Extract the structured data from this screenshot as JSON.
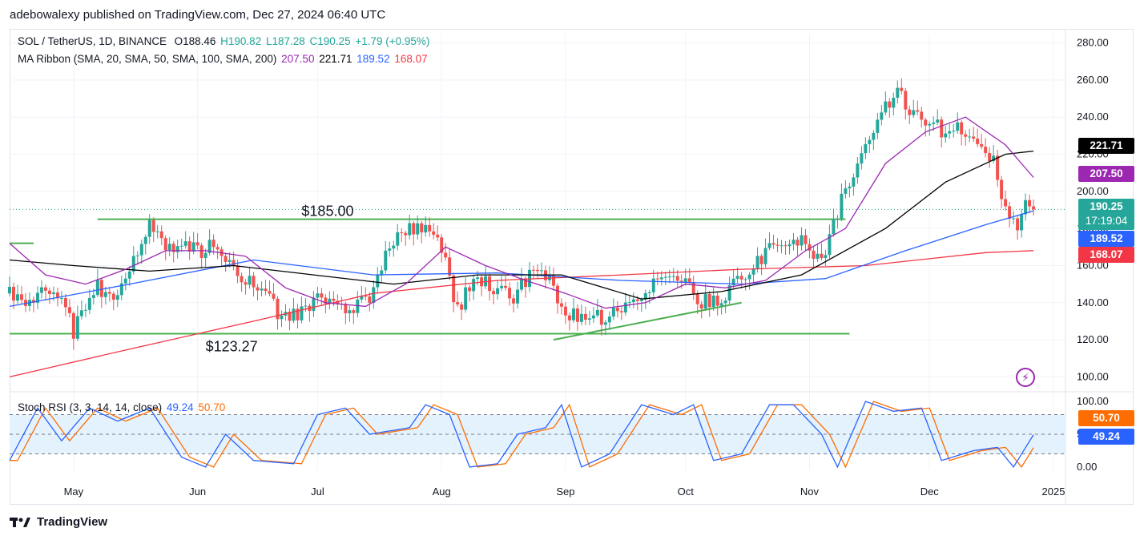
{
  "header": {
    "text": "adebowalexy published on TradingView.com, Dec 27, 2024 06:40 UTC"
  },
  "legend": {
    "symbol": "SOL / TetherUS, 1D, BINANCE",
    "o": "O188.46",
    "h": "H190.82",
    "l": "L187.28",
    "c": "C190.25",
    "change": "+1.79 (+0.95%)",
    "ma_label": "MA Ribbon (SMA, 20, SMA, 50, SMA, 100, SMA, 200)",
    "ma20": "207.50",
    "ma50": "221.71",
    "ma100": "189.52",
    "ma200": "168.07",
    "stoch_label": "Stoch RSI (3, 3, 14, 14, close)",
    "stoch_k": "49.24",
    "stoch_d": "50.70"
  },
  "tags": {
    "ma50": "221.71",
    "ma20": "207.50",
    "price": "190.25",
    "countdown": "17:19:04",
    "ma100": "189.52",
    "ma200": "168.07",
    "stoch_d": "50.70",
    "stoch_k": "49.24"
  },
  "annotations": {
    "resistance": "$185.00",
    "support": "$123.27"
  },
  "footer": {
    "brand": "TradingView"
  },
  "colors": {
    "up": "#26a69a",
    "down": "#ef5350",
    "ma20": "#9c27b0",
    "ma50": "#000000",
    "ma100": "#2962ff",
    "ma200": "#f23645",
    "levels": "#4caf50",
    "stoch_k": "#2962ff",
    "stoch_d": "#ff6d00",
    "stoch_band": "#e3f2fd"
  },
  "chart_data": {
    "type": "candlestick",
    "x_tick_labels": [
      "May",
      "Jun",
      "Jul",
      "Aug",
      "Sep",
      "Oct",
      "Nov",
      "Dec",
      "2025"
    ],
    "y_ticks": [
      "280.00",
      "260.00",
      "240.00",
      "220.00",
      "200.00",
      "180.00",
      "160.00",
      "140.00",
      "120.00",
      "100.00"
    ],
    "y_range": [
      95,
      285
    ],
    "stoch_ticks": [
      "100.00",
      "50.00",
      "0.00"
    ],
    "stoch_range": [
      -5,
      105
    ],
    "stoch_bands": [
      20,
      80
    ],
    "date_range": [
      "2024-04-15",
      "2025-01-04"
    ],
    "month_starts": [
      "2024-05-01",
      "2024-06-01",
      "2024-07-01",
      "2024-08-01",
      "2024-09-01",
      "2024-10-01",
      "2024-11-01",
      "2024-12-01",
      "2025-01-01"
    ],
    "price_knots": [
      [
        "2024-04-15",
        145
      ],
      [
        "2024-04-19",
        138
      ],
      [
        "2024-04-24",
        150
      ],
      [
        "2024-04-29",
        140
      ],
      [
        "2024-05-01",
        125
      ],
      [
        "2024-05-07",
        148
      ],
      [
        "2024-05-12",
        145
      ],
      [
        "2024-05-16",
        162
      ],
      [
        "2024-05-20",
        185
      ],
      [
        "2024-05-24",
        172
      ],
      [
        "2024-05-28",
        170
      ],
      [
        "2024-06-02",
        168
      ],
      [
        "2024-06-06",
        172
      ],
      [
        "2024-06-11",
        155
      ],
      [
        "2024-06-16",
        150
      ],
      [
        "2024-06-21",
        135
      ],
      [
        "2024-06-26",
        132
      ],
      [
        "2024-07-01",
        145
      ],
      [
        "2024-07-05",
        140
      ],
      [
        "2024-07-09",
        138
      ],
      [
        "2024-07-14",
        142
      ],
      [
        "2024-07-18",
        165
      ],
      [
        "2024-07-22",
        180
      ],
      [
        "2024-07-27",
        182
      ],
      [
        "2024-08-01",
        170
      ],
      [
        "2024-08-05",
        135
      ],
      [
        "2024-08-09",
        155
      ],
      [
        "2024-08-14",
        148
      ],
      [
        "2024-08-19",
        142
      ],
      [
        "2024-08-24",
        160
      ],
      [
        "2024-08-28",
        152
      ],
      [
        "2024-09-01",
        135
      ],
      [
        "2024-09-06",
        130
      ],
      [
        "2024-09-11",
        133
      ],
      [
        "2024-09-16",
        137
      ],
      [
        "2024-09-21",
        148
      ],
      [
        "2024-09-26",
        155
      ],
      [
        "2024-10-01",
        150
      ],
      [
        "2024-10-05",
        140
      ],
      [
        "2024-10-10",
        142
      ],
      [
        "2024-10-15",
        155
      ],
      [
        "2024-10-20",
        165
      ],
      [
        "2024-10-25",
        172
      ],
      [
        "2024-10-30",
        175
      ],
      [
        "2024-11-04",
        160
      ],
      [
        "2024-11-09",
        195
      ],
      [
        "2024-11-13",
        215
      ],
      [
        "2024-11-17",
        235
      ],
      [
        "2024-11-20",
        245
      ],
      [
        "2024-11-23",
        255
      ],
      [
        "2024-11-27",
        240
      ],
      [
        "2024-12-01",
        240
      ],
      [
        "2024-12-05",
        230
      ],
      [
        "2024-12-09",
        235
      ],
      [
        "2024-12-13",
        222
      ],
      [
        "2024-12-17",
        215
      ],
      [
        "2024-12-20",
        190
      ],
      [
        "2024-12-23",
        182
      ],
      [
        "2024-12-25",
        195
      ],
      [
        "2024-12-27",
        190.25
      ]
    ],
    "ma_knots": {
      "sma20": [
        [
          "2024-04-15",
          172
        ],
        [
          "2024-04-24",
          155
        ],
        [
          "2024-05-04",
          150
        ],
        [
          "2024-05-14",
          158
        ],
        [
          "2024-05-24",
          168
        ],
        [
          "2024-06-03",
          168
        ],
        [
          "2024-06-13",
          165
        ],
        [
          "2024-06-23",
          148
        ],
        [
          "2024-07-03",
          140
        ],
        [
          "2024-07-13",
          138
        ],
        [
          "2024-07-23",
          150
        ],
        [
          "2024-08-02",
          170
        ],
        [
          "2024-08-12",
          160
        ],
        [
          "2024-08-22",
          152
        ],
        [
          "2024-09-01",
          145
        ],
        [
          "2024-09-11",
          137
        ],
        [
          "2024-09-21",
          140
        ],
        [
          "2024-10-01",
          150
        ],
        [
          "2024-10-11",
          148
        ],
        [
          "2024-10-21",
          152
        ],
        [
          "2024-10-31",
          168
        ],
        [
          "2024-11-10",
          180
        ],
        [
          "2024-11-20",
          215
        ],
        [
          "2024-11-30",
          232
        ],
        [
          "2024-12-10",
          240
        ],
        [
          "2024-12-20",
          225
        ],
        [
          "2024-12-27",
          207.5
        ]
      ],
      "sma50": [
        [
          "2024-04-15",
          163
        ],
        [
          "2024-05-01",
          160
        ],
        [
          "2024-05-20",
          157
        ],
        [
          "2024-06-10",
          160
        ],
        [
          "2024-06-30",
          155
        ],
        [
          "2024-07-20",
          150
        ],
        [
          "2024-08-10",
          155
        ],
        [
          "2024-08-31",
          155
        ],
        [
          "2024-09-20",
          142
        ],
        [
          "2024-10-10",
          146
        ],
        [
          "2024-10-30",
          155
        ],
        [
          "2024-11-20",
          180
        ],
        [
          "2024-12-05",
          205
        ],
        [
          "2024-12-20",
          220
        ],
        [
          "2024-12-27",
          221.71
        ]
      ],
      "sma100": [
        [
          "2024-04-15",
          138
        ],
        [
          "2024-05-15",
          150
        ],
        [
          "2024-06-15",
          163
        ],
        [
          "2024-07-15",
          155
        ],
        [
          "2024-08-15",
          156
        ],
        [
          "2024-09-15",
          152
        ],
        [
          "2024-10-15",
          150
        ],
        [
          "2024-11-05",
          153
        ],
        [
          "2024-11-25",
          168
        ],
        [
          "2024-12-15",
          182
        ],
        [
          "2024-12-27",
          189.52
        ]
      ],
      "sma200": [
        [
          "2024-04-15",
          100
        ],
        [
          "2024-05-15",
          115
        ],
        [
          "2024-06-15",
          130
        ],
        [
          "2024-07-15",
          145
        ],
        [
          "2024-08-15",
          152
        ],
        [
          "2024-09-15",
          155
        ],
        [
          "2024-10-15",
          158
        ],
        [
          "2024-11-15",
          160
        ],
        [
          "2024-12-15",
          167
        ],
        [
          "2024-12-27",
          168.07
        ]
      ]
    },
    "stoch_knots": [
      [
        "2024-04-15",
        10
      ],
      [
        "2024-04-22",
        90
      ],
      [
        "2024-04-28",
        40
      ],
      [
        "2024-05-05",
        90
      ],
      [
        "2024-05-12",
        70
      ],
      [
        "2024-05-20",
        90
      ],
      [
        "2024-05-28",
        15
      ],
      [
        "2024-06-03",
        0
      ],
      [
        "2024-06-08",
        50
      ],
      [
        "2024-06-15",
        10
      ],
      [
        "2024-06-25",
        5
      ],
      [
        "2024-07-01",
        80
      ],
      [
        "2024-07-08",
        90
      ],
      [
        "2024-07-14",
        50
      ],
      [
        "2024-07-24",
        60
      ],
      [
        "2024-07-28",
        95
      ],
      [
        "2024-08-03",
        80
      ],
      [
        "2024-08-08",
        0
      ],
      [
        "2024-08-15",
        5
      ],
      [
        "2024-08-20",
        50
      ],
      [
        "2024-08-27",
        60
      ],
      [
        "2024-08-31",
        95
      ],
      [
        "2024-09-05",
        0
      ],
      [
        "2024-09-12",
        20
      ],
      [
        "2024-09-20",
        95
      ],
      [
        "2024-09-28",
        80
      ],
      [
        "2024-10-03",
        95
      ],
      [
        "2024-10-08",
        10
      ],
      [
        "2024-10-15",
        20
      ],
      [
        "2024-10-22",
        95
      ],
      [
        "2024-10-28",
        95
      ],
      [
        "2024-11-04",
        50
      ],
      [
        "2024-11-08",
        0
      ],
      [
        "2024-11-15",
        100
      ],
      [
        "2024-11-22",
        85
      ],
      [
        "2024-11-29",
        90
      ],
      [
        "2024-12-04",
        10
      ],
      [
        "2024-12-12",
        25
      ],
      [
        "2024-12-18",
        30
      ],
      [
        "2024-12-22",
        0
      ],
      [
        "2024-12-27",
        49.24
      ]
    ],
    "levels": [
      {
        "value": 185,
        "from": "2024-05-07",
        "to": "2024-11-10"
      },
      {
        "value": 123.27,
        "from": "2024-04-15",
        "to": "2024-11-11"
      },
      {
        "value": 172,
        "from": "2024-04-15",
        "to": "2024-04-21"
      }
    ],
    "trendline": {
      "from": [
        "2024-08-29",
        120
      ],
      "to": [
        "2024-10-15",
        140
      ]
    }
  }
}
